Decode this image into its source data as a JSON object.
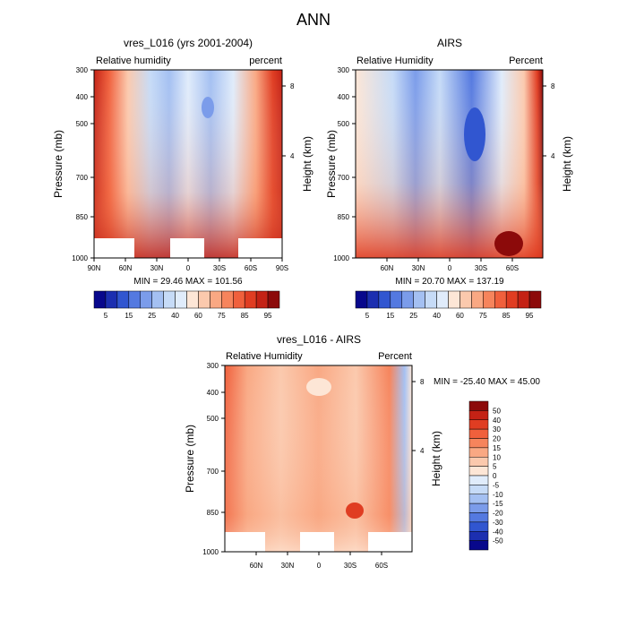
{
  "page_title": "ANN",
  "colors": {
    "scale_abs": [
      "#08088c",
      "#1c2fb0",
      "#3156d0",
      "#5479e0",
      "#7b9cea",
      "#a4c0f2",
      "#c6dbf7",
      "#e0ecfb",
      "#fde6d6",
      "#fbc9ad",
      "#f9a883",
      "#f6845c",
      "#f0603c",
      "#e03d22",
      "#c42215",
      "#8c0a0a"
    ],
    "scale_diff": [
      "#08088c",
      "#1c2fb0",
      "#3156d0",
      "#5479e0",
      "#7b9cea",
      "#a4c0f2",
      "#c6dbf7",
      "#e0ecfb",
      "#fde6d6",
      "#fbc9ad",
      "#f9a883",
      "#f6845c",
      "#f0603c",
      "#e03d22",
      "#c42215",
      "#8c0a0a"
    ]
  },
  "chart_data": [
    {
      "type": "heatmap",
      "title": "vres_L016 (yrs 2001-2004)",
      "left_label": "Relative humidity",
      "right_label": "percent",
      "ylabel": "Pressure (mb)",
      "ylabel_right": "Height (km)",
      "yticks": [
        "300",
        "400",
        "500",
        "700",
        "850",
        "1000"
      ],
      "yticks_right": [
        "8",
        "4"
      ],
      "xticks": [
        "90N",
        "60N",
        "30N",
        "0",
        "30S",
        "60S",
        "90S"
      ],
      "stats": "MIN = 29.46  MAX = 101.56",
      "colorbar_labels": [
        "5",
        "15",
        "25",
        "40",
        "60",
        "75",
        "85",
        "95"
      ],
      "ylim": [
        1000,
        300
      ],
      "xlim": [
        "90N",
        "90S"
      ]
    },
    {
      "type": "heatmap",
      "title": "AIRS",
      "left_label": "Relative Humidity",
      "right_label": "Percent",
      "ylabel": "Pressure (mb)",
      "ylabel_right": "Height (km)",
      "yticks": [
        "300",
        "400",
        "500",
        "700",
        "850",
        "1000"
      ],
      "yticks_right": [
        "8",
        "4"
      ],
      "xticks": [
        "60N",
        "30N",
        "0",
        "30S",
        "60S"
      ],
      "stats": "MIN = 20.70  MAX = 137.19",
      "colorbar_labels": [
        "5",
        "15",
        "25",
        "40",
        "60",
        "75",
        "85",
        "95"
      ],
      "ylim": [
        1000,
        300
      ]
    },
    {
      "type": "heatmap",
      "title": "vres_L016 - AIRS",
      "left_label": "Relative Humidity",
      "right_label": "Percent",
      "ylabel": "Pressure (mb)",
      "ylabel_right": "Height (km)",
      "yticks": [
        "300",
        "400",
        "500",
        "700",
        "850",
        "1000"
      ],
      "yticks_right": [
        "8",
        "4"
      ],
      "xticks": [
        "60N",
        "30N",
        "0",
        "30S",
        "60S"
      ],
      "stats": "MIN = -25.40  MAX =  45.00",
      "colorbar_labels": [
        "50",
        "40",
        "30",
        "20",
        "15",
        "10",
        "5",
        "0",
        "-5",
        "-10",
        "-15",
        "-20",
        "-30",
        "-40",
        "-50"
      ],
      "ylim": [
        1000,
        300
      ]
    }
  ]
}
